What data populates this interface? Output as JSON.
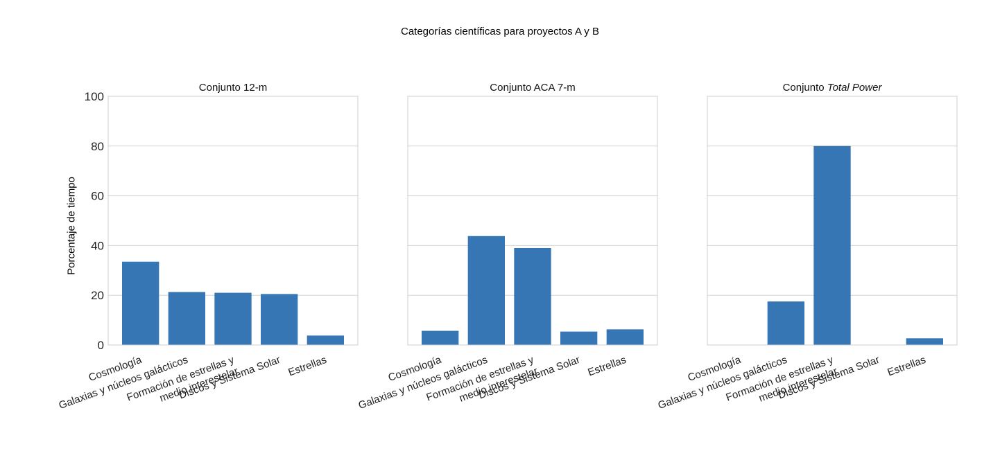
{
  "chart_data": {
    "type": "bar",
    "title": "Categorías científicas para proyectos A y B",
    "ylabel": "Porcentaje de tiempo",
    "ylim": [
      0,
      100
    ],
    "yticks": [
      "0",
      "20",
      "40",
      "60",
      "80",
      "100"
    ],
    "grid": true,
    "color": "#3776b4",
    "categories": [
      [
        "Cosmología"
      ],
      [
        "Galaxias y núcleos galácticos"
      ],
      [
        "Formación de estrellas y",
        "medio interestelar"
      ],
      [
        "Discos y Sistema Solar"
      ],
      [
        "Estrellas"
      ]
    ],
    "panels": [
      {
        "title": "Conjunto 12-m",
        "title_italic": "",
        "values": [
          33.5,
          21.3,
          21.0,
          20.5,
          3.8
        ]
      },
      {
        "title": "Conjunto ACA 7-m",
        "title_italic": "",
        "values": [
          5.7,
          43.8,
          39.0,
          5.4,
          6.3
        ]
      },
      {
        "title": "Conjunto ",
        "title_italic": "Total Power",
        "values": [
          0,
          17.5,
          80.0,
          0,
          2.7
        ]
      }
    ]
  }
}
